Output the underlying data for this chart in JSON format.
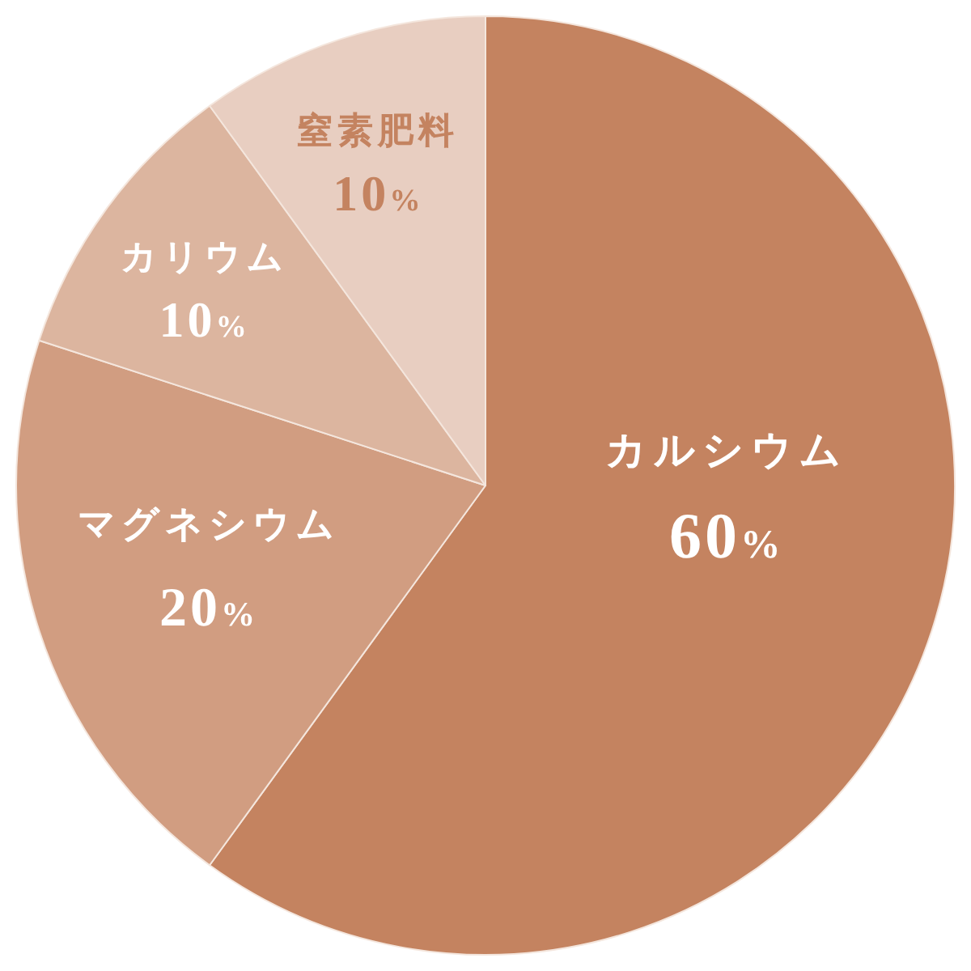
{
  "chart_data": {
    "type": "pie",
    "categories": [
      "カルシウム",
      "マグネシウム",
      "カリウム",
      "窒素肥料"
    ],
    "values": [
      60,
      20,
      10,
      10
    ],
    "colors": [
      "#c48360",
      "#d19d81",
      "#dcb59f",
      "#e8cec1"
    ],
    "value_labels": [
      "60%",
      "20%",
      "10%",
      "10%"
    ]
  }
}
